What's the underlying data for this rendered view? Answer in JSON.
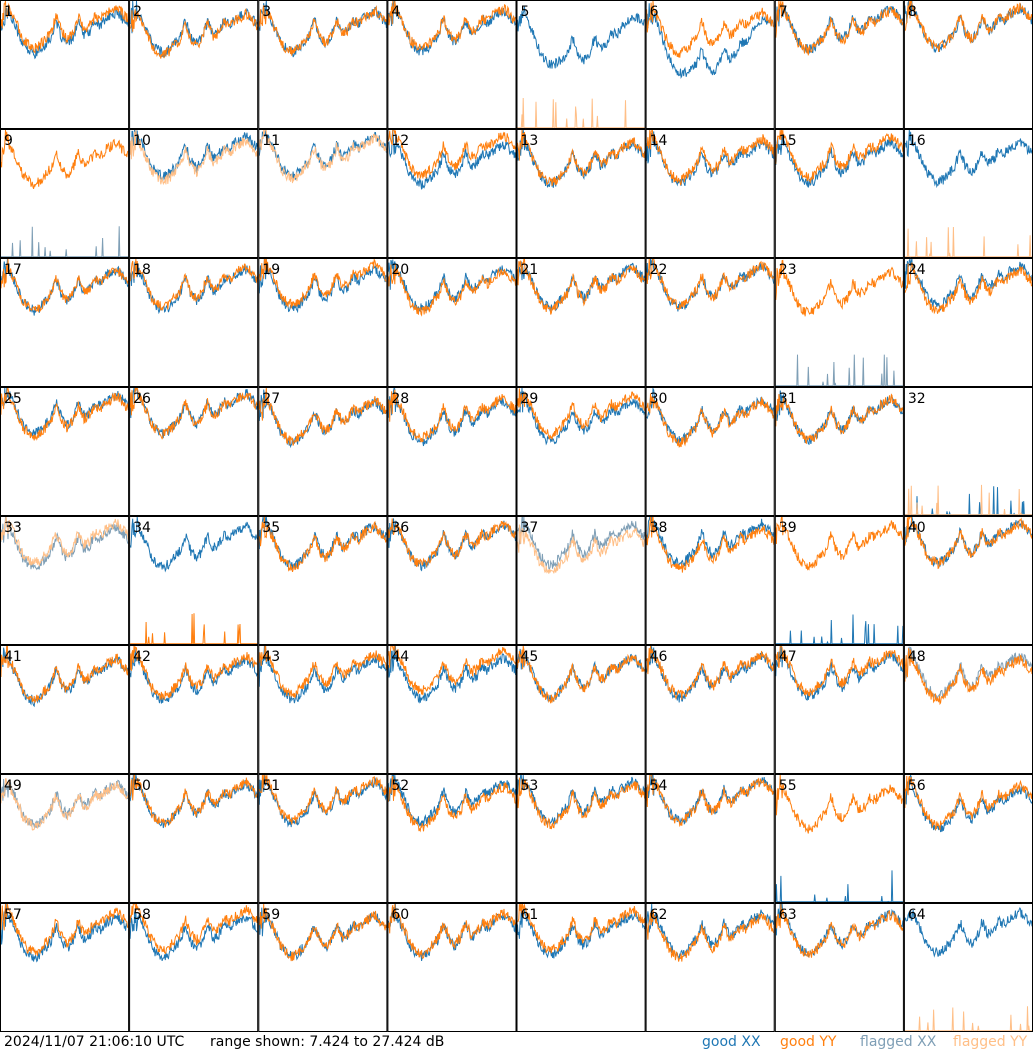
{
  "chart_data": {
    "type": "line",
    "grid": "8x8 small-multiples",
    "panel_labels": [
      "1",
      "2",
      "3",
      "4",
      "5",
      "6",
      "7",
      "8",
      "9",
      "10",
      "11",
      "12",
      "13",
      "14",
      "15",
      "16",
      "17",
      "18",
      "19",
      "20",
      "21",
      "22",
      "23",
      "24",
      "25",
      "26",
      "27",
      "28",
      "29",
      "30",
      "31",
      "32",
      "33",
      "34",
      "35",
      "36",
      "37",
      "38",
      "39",
      "40",
      "41",
      "42",
      "43",
      "44",
      "45",
      "46",
      "47",
      "48",
      "49",
      "50",
      "51",
      "52",
      "53",
      "54",
      "55",
      "56",
      "57",
      "58",
      "59",
      "60",
      "61",
      "62",
      "63",
      "64"
    ],
    "x_unit": "frequency channel (unlabeled)",
    "y_unit": "dB",
    "ylim": [
      7.424,
      27.424
    ],
    "series": [
      {
        "name": "good XX",
        "color": "#1f77b4"
      },
      {
        "name": "good YY",
        "color": "#ff7f0e"
      },
      {
        "name": "flagged XX",
        "color": "#7f9fb6"
      },
      {
        "name": "flagged YY",
        "color": "#ffbf87"
      }
    ],
    "typical_profile_db": [
      24.0,
      26.5,
      25.0,
      23.0,
      21.0,
      20.0,
      19.5,
      20.0,
      21.0,
      22.0,
      24.5,
      22.0,
      21.0,
      22.0,
      24.5,
      22.5,
      23.0,
      24.5,
      24.0,
      25.0,
      25.5,
      26.0,
      25.0,
      24.0
    ],
    "panel_status": {
      "5": "YY flagged near floor; XX dips mid-band",
      "6": "XX decays mid-band",
      "9": "XX flagged near floor",
      "10": "YY flagged",
      "11": "YY flagged",
      "16": "YY flagged near floor",
      "23": "XX flagged near floor",
      "32": "YY flagged, XX near floor",
      "33": "both flagged",
      "34": "YY near floor",
      "37": "both flagged",
      "39": "XX near floor",
      "48": "XX flagged",
      "49": "both flagged",
      "55": "XX near floor",
      "64": "YY flagged near floor"
    }
  },
  "footer": {
    "timestamp": "2024/11/07 21:06:10 UTC",
    "range_text": "range shown: 7.424 to 27.424 dB",
    "legend": {
      "good_xx": "good XX",
      "good_yy": "good YY",
      "flagged_xx": "flagged XX",
      "flagged_yy": "flagged YY"
    }
  },
  "colors": {
    "good_xx": "#1f77b4",
    "good_yy": "#ff7f0e",
    "flagged_xx": "#7f9fb6",
    "flagged_yy": "#ffbf87",
    "panel_border": "#000000",
    "background": "#ffffff"
  }
}
